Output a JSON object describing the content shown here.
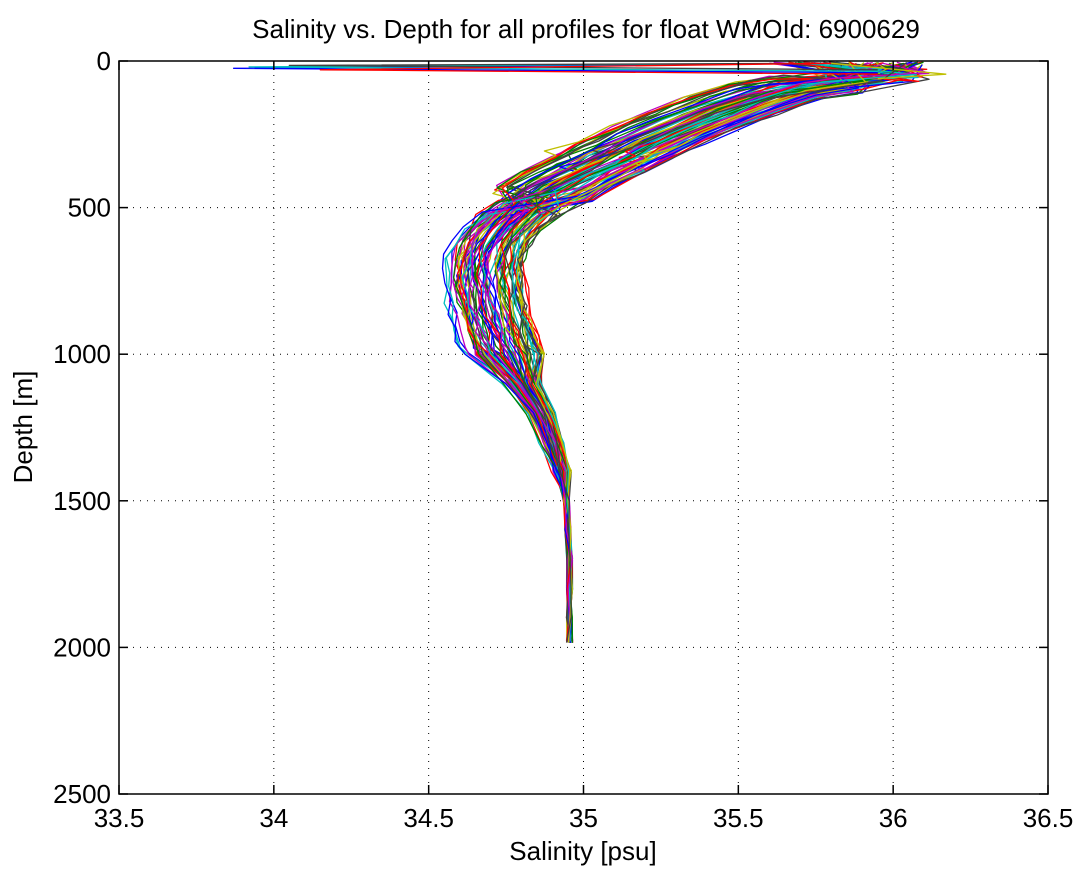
{
  "chart_data": {
    "type": "line",
    "title": "Salinity vs. Depth for all profiles for float WMOId: 6900629",
    "xlabel": "Salinity [psu]",
    "ylabel": "Depth [m]",
    "xlim": [
      33.5,
      36.5
    ],
    "ylim": [
      0,
      2500
    ],
    "y_reversed": true,
    "grid": true,
    "x_ticks": [
      "33.5",
      "34",
      "34.5",
      "35",
      "35.5",
      "36",
      "36.5"
    ],
    "y_ticks": [
      "0",
      "500",
      "1000",
      "1500",
      "2000",
      "2500"
    ],
    "x_tick_values": [
      33.5,
      34,
      34.5,
      35,
      35.5,
      36,
      36.5
    ],
    "y_tick_values": [
      0,
      500,
      1000,
      1500,
      2000,
      2500
    ],
    "series_colors": [
      "#0000ff",
      "#008000",
      "#ff0000",
      "#00bfbf",
      "#bf00bf",
      "#bfbf00",
      "#404040"
    ],
    "profile_count": 84,
    "representative_profile": {
      "depth": [
        5,
        20,
        40,
        60,
        80,
        100,
        150,
        200,
        250,
        300,
        350,
        400,
        450,
        500,
        550,
        600,
        650,
        700,
        750,
        800,
        850,
        900,
        950,
        1000,
        1100,
        1200,
        1300,
        1400,
        1500,
        1600,
        1700,
        1800,
        1900,
        1980
      ],
      "salinity": [
        35.95,
        36.0,
        36.05,
        35.95,
        35.75,
        35.62,
        35.48,
        35.36,
        35.24,
        35.14,
        35.05,
        34.95,
        34.87,
        34.8,
        34.74,
        34.7,
        34.68,
        34.67,
        34.67,
        34.68,
        34.69,
        34.7,
        34.72,
        34.74,
        34.8,
        34.86,
        34.9,
        34.93,
        34.945,
        34.95,
        34.955,
        34.955,
        34.955,
        34.955
      ]
    },
    "surface_outliers": [
      {
        "depth": 25,
        "salinity": 33.87
      },
      {
        "depth": 20,
        "salinity": 33.92
      },
      {
        "depth": 15,
        "salinity": 34.05
      },
      {
        "depth": 30,
        "salinity": 34.15
      },
      {
        "depth": 45,
        "salinity": 36.17
      }
    ]
  }
}
